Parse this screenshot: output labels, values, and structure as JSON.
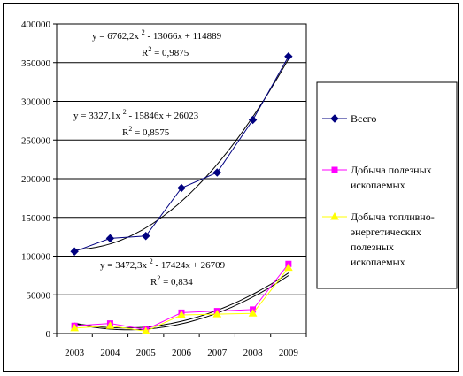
{
  "chart_data": {
    "type": "line",
    "title": "",
    "xlabel": "",
    "ylabel": "",
    "categories": [
      "2003",
      "2004",
      "2005",
      "2006",
      "2007",
      "2008",
      "2009"
    ],
    "ylim": [
      0,
      400000
    ],
    "yticks": [
      0,
      50000,
      100000,
      150000,
      200000,
      250000,
      300000,
      350000,
      400000
    ],
    "ytick_labels": [
      "0",
      "50000",
      "100000",
      "150000",
      "200000",
      "250000",
      "300000",
      "350000",
      "400000"
    ],
    "grid": "horizontal",
    "legend_position": "right",
    "series": [
      {
        "name": "Всего",
        "color": "#000080",
        "marker": "diamond",
        "values": [
          106000,
          123000,
          126000,
          188000,
          208000,
          276000,
          358000
        ],
        "trendline": {
          "type": "poly2",
          "a": 6762.2,
          "b": -13066,
          "c": 114889,
          "color": "#000000"
        }
      },
      {
        "name": "Добыча полезных ископаемых",
        "color": "#ff00ff",
        "marker": "square",
        "values": [
          10000,
          13000,
          5000,
          27000,
          29000,
          31000,
          90000
        ],
        "trendline": {
          "type": "poly2",
          "a": 3327.1,
          "b": -15846,
          "c": 26023,
          "color": "#000000"
        }
      },
      {
        "name": "Добыча топливно-энергетических полезных ископаемых",
        "color": "#ffff00",
        "marker": "triangle",
        "values": [
          7000,
          10000,
          3000,
          24000,
          25000,
          26000,
          85000
        ],
        "trendline": {
          "type": "poly2",
          "a": 3472.3,
          "b": -17424,
          "c": 26709,
          "color": "#000000"
        }
      }
    ],
    "annotations": [
      {
        "equation": "y = 6762,2x 2 - 13066x + 114889",
        "r2": "R2 = 0,9875"
      },
      {
        "equation": "y = 3327,1x 2 - 15846x + 26023",
        "r2": "R2 = 0,8575"
      },
      {
        "equation": "y = 3472,3x 2 - 17424x + 26709",
        "r2": "R2 = 0,834"
      }
    ],
    "legend": {
      "entries": [
        {
          "lines": [
            "Всего"
          ]
        },
        {
          "lines": [
            "Добыча полезных",
            "ископаемых"
          ]
        },
        {
          "lines": [
            "Добыча топливно-",
            "энергетических",
            "полезных",
            "ископаемых"
          ]
        }
      ]
    }
  }
}
